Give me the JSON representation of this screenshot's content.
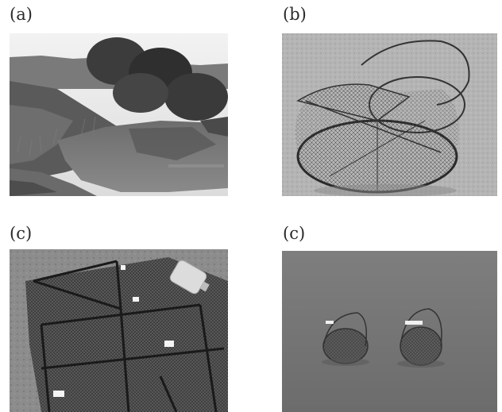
{
  "panels": [
    {
      "label": "(a)"
    },
    {
      "label": "(b)"
    },
    {
      "label": "(c)"
    },
    {
      "label": "(c)"
    }
  ]
}
